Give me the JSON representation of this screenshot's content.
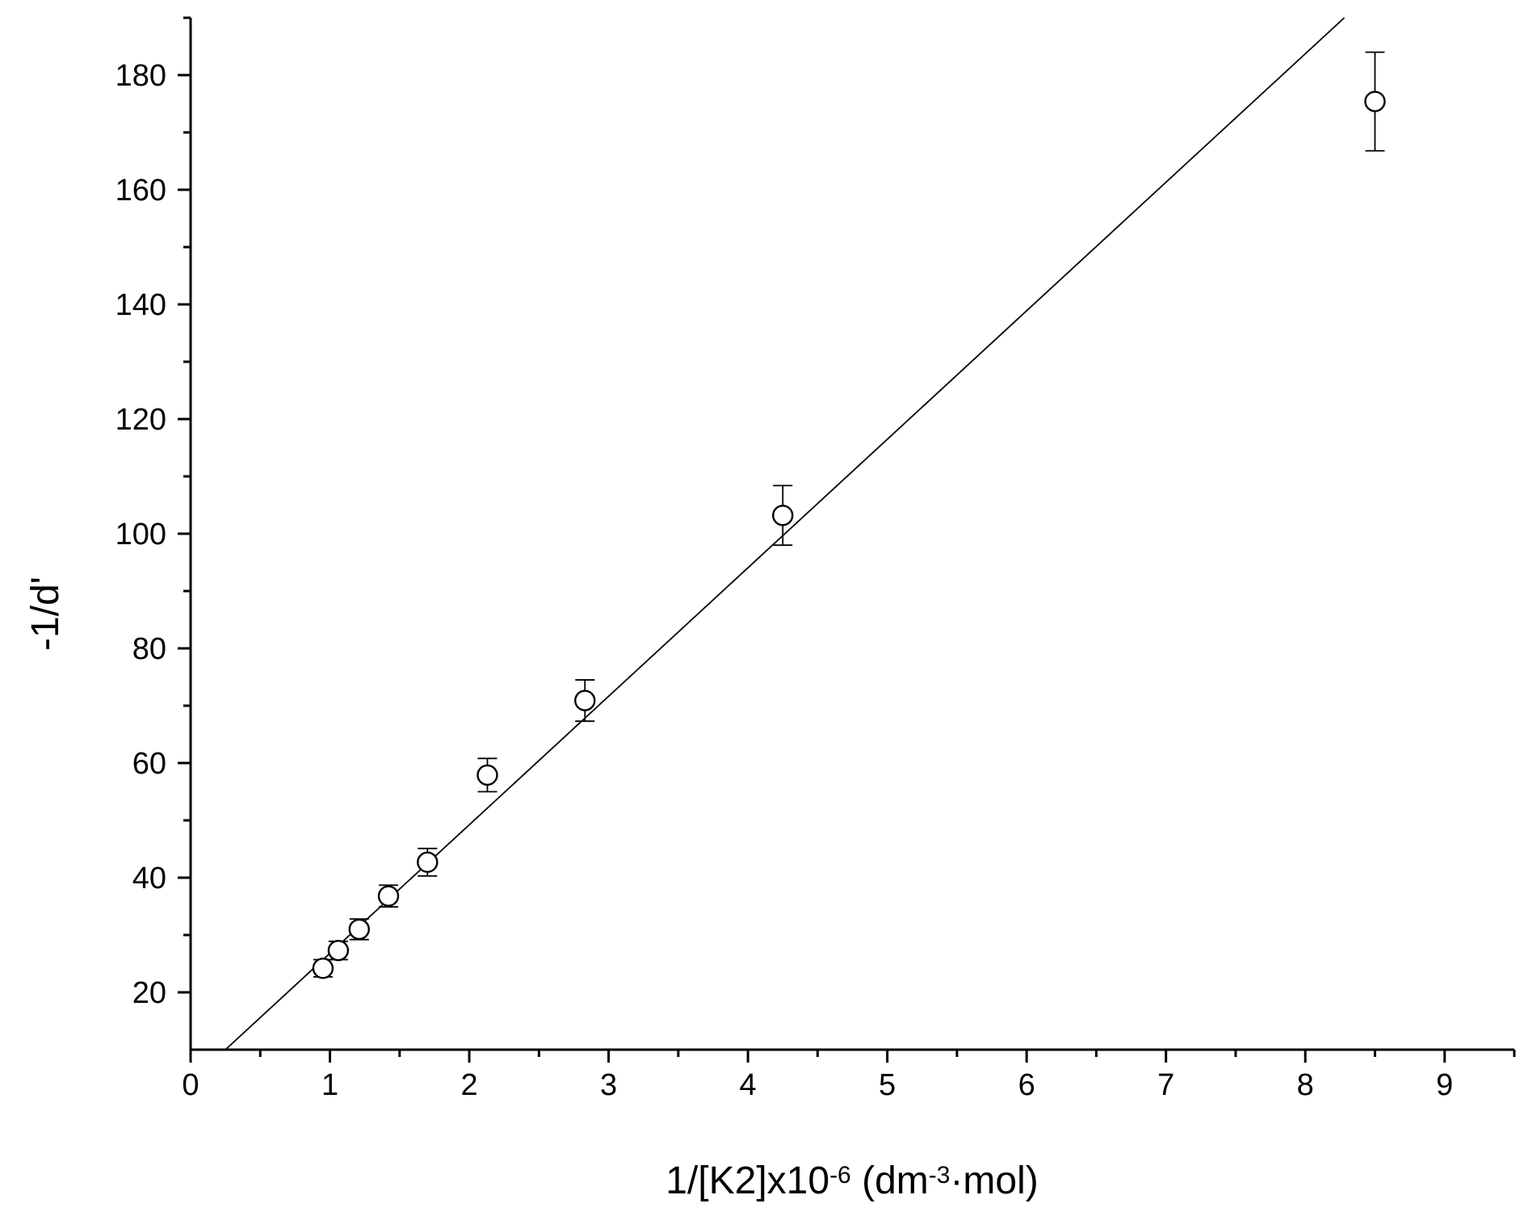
{
  "chart_data": {
    "type": "scatter",
    "x_axis": {
      "label_parts": [
        {
          "text": "1/[K2]x10",
          "sup": false
        },
        {
          "text": "-6",
          "sup": true
        },
        {
          "text": " (dm",
          "sup": false
        },
        {
          "text": "-3",
          "sup": true
        },
        {
          "text": "·mol)",
          "sup": false
        }
      ],
      "range": [
        0,
        9.5
      ],
      "major_ticks": [
        0,
        1,
        2,
        3,
        4,
        5,
        6,
        7,
        8,
        9
      ],
      "tick_labels": [
        "0",
        "1",
        "2",
        "3",
        "4",
        "5",
        "6",
        "7",
        "8",
        "9"
      ],
      "minor_step": 0.5
    },
    "y_axis": {
      "label": "-1/d'",
      "range": [
        10,
        190
      ],
      "major_ticks": [
        20,
        40,
        60,
        80,
        100,
        120,
        140,
        160,
        180
      ],
      "tick_labels": [
        "20",
        "40",
        "60",
        "80",
        "100",
        "120",
        "140",
        "160",
        "180"
      ],
      "minor_step": 10
    },
    "points": [
      {
        "x": 0.95,
        "y": 24.2,
        "err": 1.5
      },
      {
        "x": 1.06,
        "y": 27.3,
        "err": 1.6
      },
      {
        "x": 1.21,
        "y": 31.0,
        "err": 1.8
      },
      {
        "x": 1.42,
        "y": 36.8,
        "err": 1.9
      },
      {
        "x": 1.7,
        "y": 42.7,
        "err": 2.4
      },
      {
        "x": 2.13,
        "y": 57.9,
        "err": 2.9
      },
      {
        "x": 2.83,
        "y": 70.9,
        "err": 3.6
      },
      {
        "x": 4.25,
        "y": 103.2,
        "err": 5.2
      },
      {
        "x": 8.5,
        "y": 175.4,
        "err": 8.6
      }
    ],
    "fit_line": {
      "x_start": 0.25,
      "y_start": 10,
      "x_end": 8.28,
      "y_end": 190
    },
    "grid": false,
    "legend": false
  }
}
